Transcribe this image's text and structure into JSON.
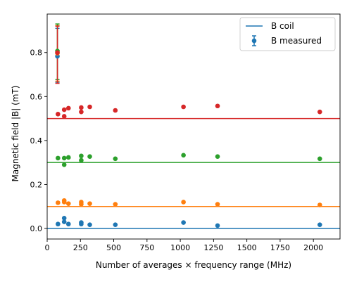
{
  "chart_data": {
    "type": "scatter",
    "title": "",
    "xlabel": "Number of averages × frequency range (MHz)",
    "ylabel": "Magnetic field |B| (mT)",
    "xlim": [
      0,
      2200
    ],
    "ylim": [
      -0.048,
      0.975
    ],
    "x_ticks": [
      0,
      250,
      500,
      750,
      1000,
      1250,
      1500,
      1750,
      2000
    ],
    "y_ticks": [
      0.0,
      0.2,
      0.4,
      0.6,
      0.8
    ],
    "grid": false,
    "legend": {
      "position": "top-right",
      "entries": [
        {
          "label": "B coil",
          "marker": "line"
        },
        {
          "label": "B measured",
          "marker": "errorbar-point"
        }
      ]
    },
    "series": [
      {
        "color": "#1f77b4",
        "coil_value": 0.0,
        "x": [
          77,
          81,
          128,
          128,
          160,
          256,
          256,
          320,
          512,
          1024,
          1280,
          2048
        ],
        "y": [
          0.783,
          0.02,
          0.03,
          0.047,
          0.02,
          0.02,
          0.027,
          0.017,
          0.017,
          0.027,
          0.013,
          0.017
        ],
        "error_bar": {
          "x": 77,
          "y": 0.783,
          "low": 0.665,
          "high": 0.91
        }
      },
      {
        "color": "#ff7f0e",
        "coil_value": 0.1,
        "x": [
          77,
          81,
          128,
          128,
          160,
          256,
          256,
          320,
          512,
          1024,
          1280,
          2048
        ],
        "y": [
          0.797,
          0.117,
          0.127,
          0.12,
          0.113,
          0.12,
          0.11,
          0.113,
          0.11,
          0.12,
          0.11,
          0.107
        ],
        "error_bar": {
          "x": 77,
          "y": 0.797,
          "low": 0.67,
          "high": 0.923
        }
      },
      {
        "color": "#2ca02c",
        "coil_value": 0.3,
        "x": [
          77,
          81,
          128,
          128,
          160,
          256,
          256,
          320,
          512,
          1024,
          1280,
          2048
        ],
        "y": [
          0.807,
          0.32,
          0.32,
          0.29,
          0.323,
          0.33,
          0.31,
          0.327,
          0.317,
          0.333,
          0.327,
          0.317
        ],
        "error_bar": {
          "x": 77,
          "y": 0.807,
          "low": 0.677,
          "high": 0.93
        }
      },
      {
        "color": "#d62728",
        "coil_value": 0.5,
        "x": [
          77,
          81,
          128,
          128,
          160,
          256,
          256,
          320,
          512,
          1024,
          1280,
          2048
        ],
        "y": [
          0.8,
          0.52,
          0.54,
          0.51,
          0.547,
          0.55,
          0.53,
          0.553,
          0.537,
          0.553,
          0.557,
          0.53
        ],
        "error_bar": {
          "x": 77,
          "y": 0.8,
          "low": 0.66,
          "high": 0.92
        }
      }
    ]
  }
}
